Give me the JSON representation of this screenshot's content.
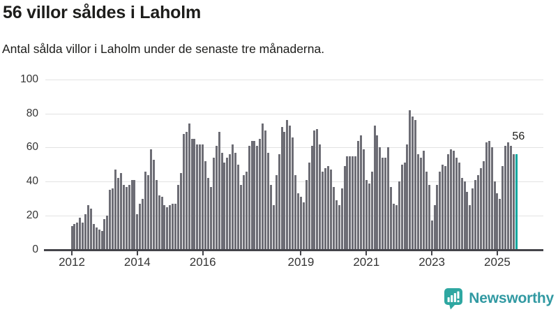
{
  "title": "56 villor såldes i Laholm",
  "subtitle": "Antal sålda villor i Laholm under de senaste tre månaderna.",
  "annotation": {
    "label": "56"
  },
  "branding": {
    "name": "Newsworthy",
    "icon": "bar-chart-speech-bubble-icon"
  },
  "colors": {
    "bar": "#6d6d75",
    "highlight": "#00a69e",
    "grid": "#e2e2e2",
    "axis": "#44444a",
    "tick_text": "#333333",
    "text": "#1d1d1b",
    "logo_bubble": "#2ea7a1",
    "logo_text": "#3199a2"
  },
  "chart_data": {
    "type": "bar",
    "title": "56 villor såldes i Laholm",
    "subtitle": "Antal sålda villor i Laholm under de senaste tre månaderna.",
    "frequency": "monthly",
    "x_start": "2012-01",
    "xlabel": "",
    "ylabel": "",
    "ylim": [
      0,
      100
    ],
    "grid": true,
    "y_ticks": [
      0,
      20,
      40,
      60,
      80,
      100
    ],
    "x_ticks": [
      {
        "label": "2012",
        "month_index": 0
      },
      {
        "label": "2014",
        "month_index": 24
      },
      {
        "label": "2016",
        "month_index": 48
      },
      {
        "label": "2019",
        "month_index": 84
      },
      {
        "label": "2021",
        "month_index": 108
      },
      {
        "label": "2023",
        "month_index": 132
      },
      {
        "label": "2025",
        "month_index": 156
      }
    ],
    "values": [
      14,
      15,
      16,
      19,
      16,
      21,
      26,
      24,
      15,
      13,
      12,
      11,
      18,
      20,
      35,
      36,
      47,
      42,
      45,
      38,
      37,
      38,
      41,
      41,
      21,
      27,
      30,
      46,
      44,
      59,
      53,
      41,
      32,
      31,
      26,
      25,
      26,
      27,
      27,
      38,
      45,
      68,
      69,
      74,
      65,
      65,
      62,
      62,
      62,
      52,
      42,
      37,
      54,
      61,
      69,
      57,
      51,
      54,
      56,
      62,
      57,
      50,
      38,
      44,
      46,
      61,
      64,
      64,
      61,
      65,
      74,
      70,
      57,
      38,
      26,
      44,
      56,
      72,
      69,
      76,
      73,
      66,
      44,
      33,
      31,
      28,
      41,
      51,
      61,
      70,
      71,
      62,
      46,
      48,
      49,
      47,
      37,
      29,
      26,
      36,
      49,
      55,
      55,
      55,
      55,
      64,
      67,
      59,
      41,
      39,
      46,
      73,
      67,
      60,
      54,
      54,
      60,
      37,
      27,
      26,
      40,
      50,
      51,
      62,
      82,
      78,
      76,
      56,
      54,
      58,
      46,
      38,
      17,
      26,
      38,
      46,
      50,
      49,
      56,
      59,
      58,
      54,
      51,
      42,
      40,
      34,
      26,
      36,
      41,
      44,
      48,
      52,
      63,
      64,
      60,
      40,
      33,
      30,
      49,
      61,
      63,
      61,
      56,
      56
    ],
    "highlight_last_bar": true,
    "last_value_label": "56",
    "legend": null
  }
}
